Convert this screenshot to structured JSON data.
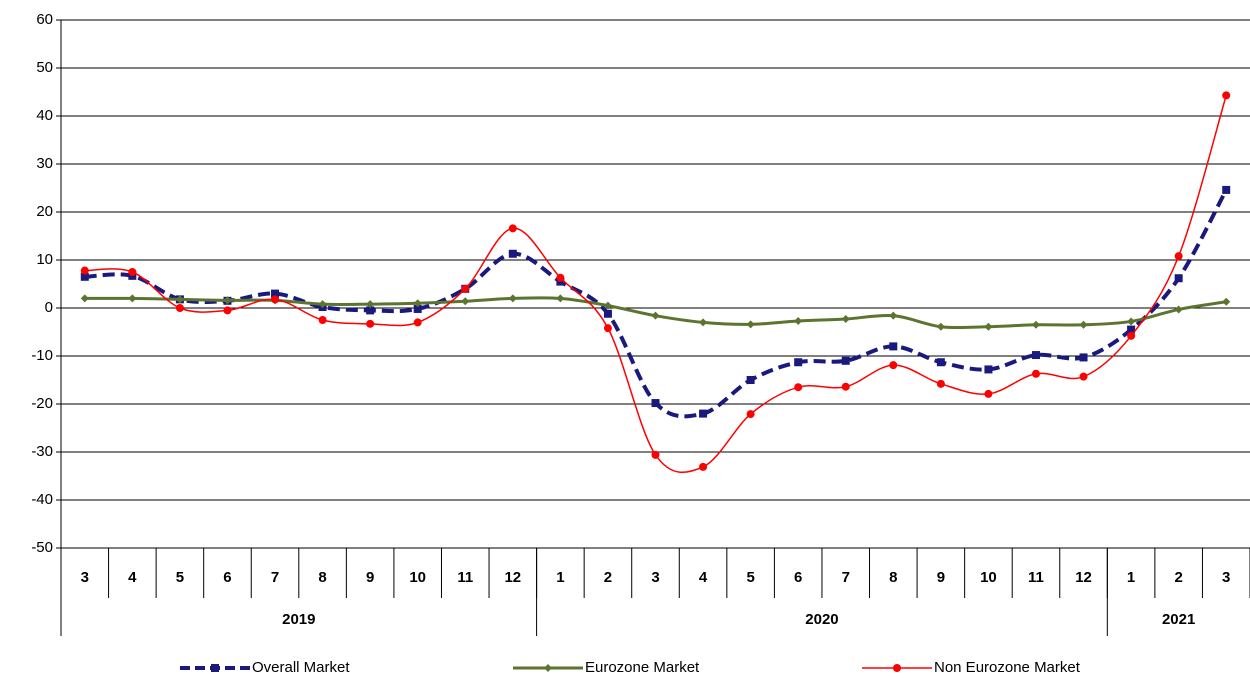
{
  "chart_data": {
    "type": "line",
    "groups": [
      {
        "label": "2019",
        "categories": [
          "3",
          "4",
          "5",
          "6",
          "7",
          "8",
          "9",
          "10",
          "11",
          "12"
        ]
      },
      {
        "label": "2020",
        "categories": [
          "1",
          "2",
          "3",
          "4",
          "5",
          "6",
          "7",
          "8",
          "9",
          "10",
          "11",
          "12"
        ]
      },
      {
        "label": "2021",
        "categories": [
          "1",
          "2",
          "3"
        ]
      }
    ],
    "series": [
      {
        "name": "Overall Market",
        "color": "#1a1a7e",
        "marker": "square",
        "dashed": true,
        "values": [
          6.5,
          6.7,
          1.8,
          1.5,
          3.0,
          0.2,
          -0.5,
          -0.2,
          4.0,
          11.3,
          5.5,
          -1.2,
          -19.8,
          -22.0,
          -15.0,
          -11.3,
          -11.0,
          -8.0,
          -11.3,
          -12.8,
          -9.8,
          -10.3,
          -4.5,
          6.2,
          24.6
        ]
      },
      {
        "name": "Eurozone Market",
        "color": "#5b7530",
        "marker": "diamond",
        "dashed": false,
        "values": [
          2.0,
          2.0,
          1.8,
          1.6,
          1.6,
          0.8,
          0.8,
          1.0,
          1.4,
          2.0,
          2.0,
          0.5,
          -1.6,
          -3.0,
          -3.4,
          -2.7,
          -2.3,
          -1.6,
          -3.9,
          -3.9,
          -3.5,
          -3.5,
          -2.8,
          -0.3,
          1.3
        ]
      },
      {
        "name": "Non Eurozone Market",
        "color": "#ff0000",
        "marker": "circle",
        "dashed": false,
        "values": [
          7.8,
          7.5,
          0.0,
          -0.5,
          1.8,
          -2.5,
          -3.3,
          -3.0,
          4.0,
          16.6,
          6.3,
          -4.2,
          -30.6,
          -33.1,
          -22.1,
          -16.5,
          -16.4,
          -11.9,
          -15.8,
          -17.9,
          -13.7,
          -14.3,
          -5.8,
          10.8,
          44.3
        ]
      }
    ],
    "ylim": [
      -50,
      60
    ],
    "yticks": [
      -50,
      -40,
      -30,
      -20,
      -10,
      0,
      10,
      20,
      30,
      40,
      50,
      60
    ],
    "grid": true
  }
}
